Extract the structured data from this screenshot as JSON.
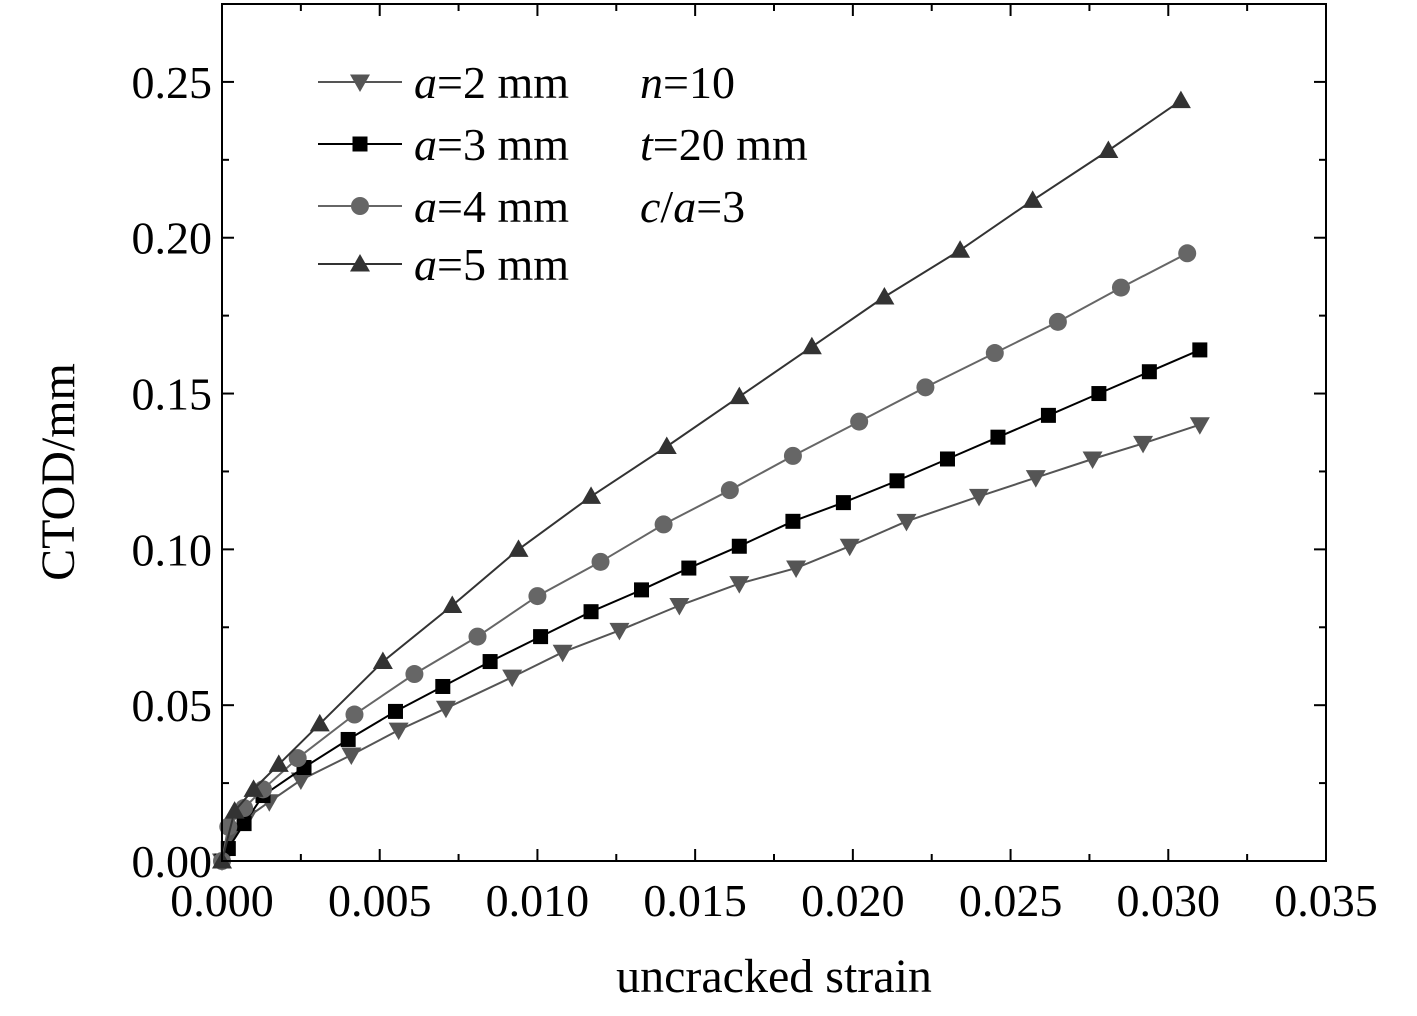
{
  "chart_data": {
    "type": "line",
    "xlabel": "uncracked strain",
    "ylabel": "CTOD/mm",
    "xlim": [
      0,
      0.035
    ],
    "ylim": [
      0,
      0.275
    ],
    "xticks": [
      0.0,
      0.005,
      0.01,
      0.015,
      0.02,
      0.025,
      0.03,
      0.035
    ],
    "xtick_labels": [
      "0.000",
      "0.005",
      "0.010",
      "0.015",
      "0.020",
      "0.025",
      "0.030",
      "0.035"
    ],
    "yticks": [
      0.0,
      0.05,
      0.1,
      0.15,
      0.2,
      0.25
    ],
    "ytick_labels": [
      "0.00",
      "0.05",
      "0.10",
      "0.15",
      "0.20",
      "0.25"
    ],
    "grid": false,
    "legend_position": "top-left",
    "series": [
      {
        "name": "a=2 mm",
        "name_parts": [
          {
            "text": "a",
            "italic": true
          },
          {
            "text": "=2 mm",
            "italic": false
          }
        ],
        "marker": "triangle-down",
        "color": "#555555",
        "x": [
          0.0,
          0.0003,
          0.0008,
          0.0015,
          0.0025,
          0.0041,
          0.0056,
          0.0071,
          0.0092,
          0.0108,
          0.0126,
          0.0145,
          0.0164,
          0.0182,
          0.0199,
          0.0217,
          0.024,
          0.0258,
          0.0276,
          0.0292,
          0.031
        ],
        "y": [
          0.0,
          0.009,
          0.014,
          0.019,
          0.026,
          0.034,
          0.042,
          0.049,
          0.059,
          0.067,
          0.074,
          0.082,
          0.089,
          0.094,
          0.101,
          0.109,
          0.117,
          0.123,
          0.129,
          0.134,
          0.14
        ]
      },
      {
        "name": "a=3 mm",
        "name_parts": [
          {
            "text": "a",
            "italic": true
          },
          {
            "text": "=3 mm",
            "italic": false
          }
        ],
        "marker": "square",
        "color": "#000000",
        "x": [
          0.0,
          0.0002,
          0.0007,
          0.0013,
          0.0026,
          0.004,
          0.0055,
          0.007,
          0.0085,
          0.0101,
          0.0117,
          0.0133,
          0.0148,
          0.0164,
          0.0181,
          0.0197,
          0.0214,
          0.023,
          0.0246,
          0.0262,
          0.0278,
          0.0294,
          0.031
        ],
        "y": [
          0.0,
          0.004,
          0.012,
          0.021,
          0.03,
          0.039,
          0.048,
          0.056,
          0.064,
          0.072,
          0.08,
          0.087,
          0.094,
          0.101,
          0.109,
          0.115,
          0.122,
          0.129,
          0.136,
          0.143,
          0.15,
          0.157,
          0.164
        ]
      },
      {
        "name": "a=4 mm",
        "name_parts": [
          {
            "text": "a",
            "italic": true
          },
          {
            "text": "=4 mm",
            "italic": false
          }
        ],
        "marker": "circle",
        "color": "#666666",
        "x": [
          0.0,
          0.0002,
          0.0007,
          0.0013,
          0.0024,
          0.0042,
          0.0061,
          0.0081,
          0.01,
          0.012,
          0.014,
          0.0161,
          0.0181,
          0.0202,
          0.0223,
          0.0245,
          0.0265,
          0.0285,
          0.0306
        ],
        "y": [
          0.0,
          0.011,
          0.017,
          0.023,
          0.033,
          0.047,
          0.06,
          0.072,
          0.085,
          0.096,
          0.108,
          0.119,
          0.13,
          0.141,
          0.152,
          0.163,
          0.173,
          0.184,
          0.195
        ]
      },
      {
        "name": "a=5 mm",
        "name_parts": [
          {
            "text": "a",
            "italic": true
          },
          {
            "text": "=5 mm",
            "italic": false
          }
        ],
        "marker": "triangle-up",
        "color": "#333333",
        "x": [
          0.0,
          0.0004,
          0.001,
          0.0018,
          0.0031,
          0.0051,
          0.0073,
          0.0094,
          0.0117,
          0.0141,
          0.0164,
          0.0187,
          0.021,
          0.0234,
          0.0257,
          0.0281,
          0.0304
        ],
        "y": [
          0.0,
          0.016,
          0.023,
          0.031,
          0.044,
          0.064,
          0.082,
          0.1,
          0.117,
          0.133,
          0.149,
          0.165,
          0.181,
          0.196,
          0.212,
          0.228,
          0.244
        ]
      }
    ],
    "annotations": [
      {
        "parts": [
          {
            "text": "n",
            "italic": true
          },
          {
            "text": "=10",
            "italic": false
          }
        ]
      },
      {
        "parts": [
          {
            "text": "t",
            "italic": true
          },
          {
            "text": "=20 mm",
            "italic": false
          }
        ]
      },
      {
        "parts": [
          {
            "text": "c",
            "italic": true
          },
          {
            "text": "/",
            "italic": false
          },
          {
            "text": "a",
            "italic": true
          },
          {
            "text": "=3",
            "italic": false
          }
        ]
      }
    ]
  }
}
